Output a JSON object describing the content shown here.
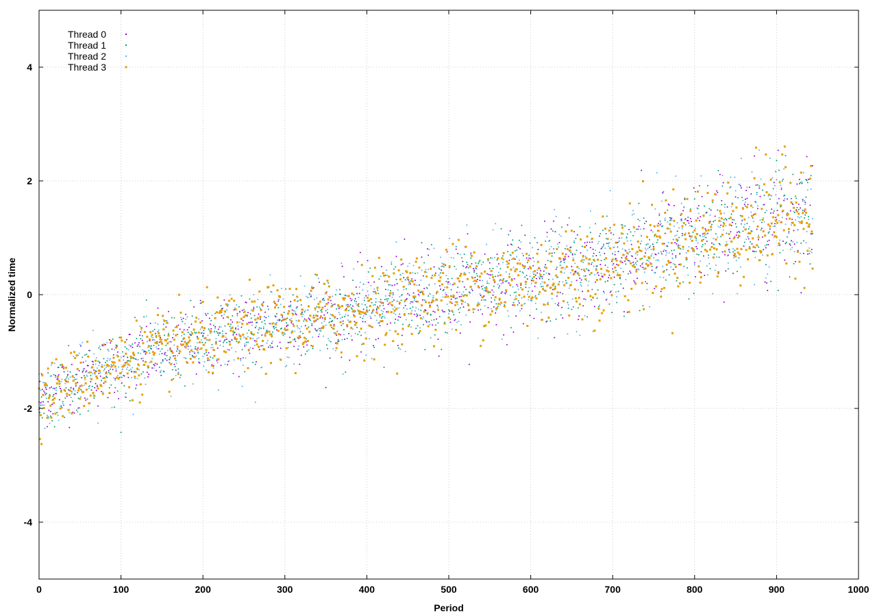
{
  "chart_data": {
    "type": "scatter",
    "title": "",
    "xlabel": "Period",
    "ylabel": "Normalized time",
    "xlim": [
      0,
      1000
    ],
    "ylim": [
      -5,
      5
    ],
    "x_ticks": [
      0,
      100,
      200,
      300,
      400,
      500,
      600,
      700,
      800,
      900,
      1000
    ],
    "y_ticks": [
      -4,
      -2,
      0,
      2,
      4
    ],
    "grid": true,
    "legend_position": "top-left",
    "point_count_per_series": 945,
    "trend": {
      "description": "all series rise roughly linearly with period",
      "anchor_points": [
        {
          "x": 0,
          "y": -1.8
        },
        {
          "x": 100,
          "y": -1.2
        },
        {
          "x": 200,
          "y": -0.8
        },
        {
          "x": 300,
          "y": -0.5
        },
        {
          "x": 400,
          "y": -0.25
        },
        {
          "x": 500,
          "y": 0.1
        },
        {
          "x": 600,
          "y": 0.25
        },
        {
          "x": 700,
          "y": 0.55
        },
        {
          "x": 800,
          "y": 1.0
        },
        {
          "x": 900,
          "y": 1.35
        },
        {
          "x": 945,
          "y": 1.5
        }
      ]
    },
    "series": [
      {
        "name": "Thread 0",
        "color": "#9400d3",
        "marker": "dot"
      },
      {
        "name": "Thread 1",
        "color": "#009e73",
        "marker": "dot"
      },
      {
        "name": "Thread 2",
        "color": "#56b4e9",
        "marker": "dot"
      },
      {
        "name": "Thread 3",
        "color": "#e69f00",
        "marker": "square"
      }
    ]
  }
}
